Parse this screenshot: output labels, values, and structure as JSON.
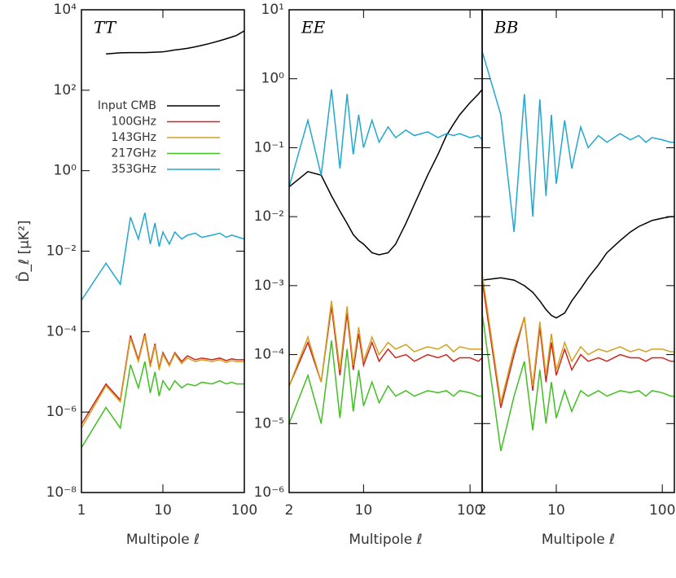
{
  "chart_data": [
    {
      "type": "line",
      "title": "TT",
      "y_label": "D̂_ℓ [μK²]",
      "x_label": "Multipole ℓ",
      "xscale": "log",
      "yscale": "log",
      "legend": "upper left",
      "xlim": [
        1,
        100
      ],
      "ylim": [
        1e-08,
        10000
      ],
      "xticks": [
        1,
        10,
        100
      ],
      "yticks": [
        {
          "value": 10000,
          "label": "10⁴"
        },
        {
          "value": 100,
          "label": "10²"
        },
        {
          "value": 1,
          "label": "10⁰"
        },
        {
          "value": 0.01,
          "label": "10⁻²"
        },
        {
          "value": 0.0001,
          "label": "10⁻⁴"
        },
        {
          "value": 1e-06,
          "label": "10⁻⁶"
        },
        {
          "value": 1e-08,
          "label": "10⁻⁸"
        }
      ],
      "x": [
        1,
        2,
        3,
        4,
        5,
        6,
        7,
        8,
        9,
        10,
        12,
        14,
        17,
        20,
        25,
        30,
        40,
        50,
        60,
        70,
        80,
        100
      ],
      "series": [
        {
          "name": "Input CMB",
          "color": "#000000",
          "values": [
            null,
            800,
            850,
            860,
            860,
            860,
            870,
            880,
            890,
            900,
            950,
            1000,
            1050,
            1100,
            1200,
            1300,
            1500,
            1700,
            1900,
            2100,
            2300,
            3000
          ]
        },
        {
          "name": "100GHz",
          "color": "#d0241c",
          "values": [
            5e-07,
            5e-06,
            2e-06,
            8e-05,
            2e-05,
            9e-05,
            1.5e-05,
            5e-05,
            1.2e-05,
            3e-05,
            1.5e-05,
            3e-05,
            1.8e-05,
            2.5e-05,
            2e-05,
            2.2e-05,
            2e-05,
            2.2e-05,
            1.9e-05,
            2.1e-05,
            2e-05,
            2e-05
          ]
        },
        {
          "name": "143GHz",
          "color": "#d4a020",
          "values": [
            4e-07,
            4.5e-06,
            1.8e-06,
            7e-05,
            1.8e-05,
            8e-05,
            1.3e-05,
            4.5e-05,
            1.1e-05,
            2.7e-05,
            1.4e-05,
            2.8e-05,
            1.6e-05,
            2.2e-05,
            1.8e-05,
            2e-05,
            1.8e-05,
            2e-05,
            1.7e-05,
            1.9e-05,
            1.8e-05,
            1.8e-05
          ]
        },
        {
          "name": "217GHz",
          "color": "#40c020",
          "values": [
            1.3e-07,
            1.3e-06,
            4e-07,
            1.5e-05,
            4e-06,
            1.8e-05,
            3e-06,
            1e-05,
            2.5e-06,
            6e-06,
            3.5e-06,
            6e-06,
            4e-06,
            5e-06,
            4.5e-06,
            5.5e-06,
            5e-06,
            6e-06,
            5e-06,
            5.5e-06,
            5e-06,
            5e-06
          ]
        },
        {
          "name": "353GHz",
          "color": "#20a8d0",
          "values": [
            0.0006,
            0.005,
            0.0015,
            0.07,
            0.02,
            0.09,
            0.015,
            0.05,
            0.013,
            0.03,
            0.015,
            0.03,
            0.02,
            0.025,
            0.028,
            0.022,
            0.025,
            0.028,
            0.022,
            0.025,
            0.023,
            0.02
          ]
        }
      ]
    },
    {
      "type": "line",
      "title": "EE",
      "x_label": "Multipole ℓ",
      "xscale": "log",
      "yscale": "log",
      "xlim": [
        2,
        130
      ],
      "ylim": [
        1e-06,
        10
      ],
      "xticks": [
        2,
        10,
        100
      ],
      "yticks": [
        {
          "value": 10,
          "label": "10¹"
        },
        {
          "value": 1,
          "label": "10⁰"
        },
        {
          "value": 0.1,
          "label": "10⁻¹"
        },
        {
          "value": 0.01,
          "label": "10⁻²"
        },
        {
          "value": 0.001,
          "label": "10⁻³"
        },
        {
          "value": 0.0001,
          "label": "10⁻⁴"
        },
        {
          "value": 1e-05,
          "label": "10⁻⁵"
        },
        {
          "value": 1e-06,
          "label": "10⁻⁶"
        }
      ],
      "x": [
        2,
        3,
        4,
        5,
        6,
        7,
        8,
        9,
        10,
        12,
        14,
        17,
        20,
        25,
        30,
        40,
        50,
        60,
        70,
        80,
        100,
        120,
        130
      ],
      "series": [
        {
          "color": "#000000",
          "values": [
            0.027,
            0.045,
            0.04,
            0.02,
            0.012,
            0.008,
            0.0055,
            0.0045,
            0.004,
            0.003,
            0.0028,
            0.003,
            0.004,
            0.008,
            0.015,
            0.04,
            0.08,
            0.15,
            0.22,
            0.3,
            0.45,
            0.6,
            0.7
          ]
        },
        {
          "color": "#d0241c",
          "values": [
            3.5e-05,
            0.00015,
            4e-05,
            0.0005,
            5e-05,
            0.0004,
            6e-05,
            0.0002,
            7e-05,
            0.00015,
            8e-05,
            0.00012,
            9e-05,
            0.0001,
            8e-05,
            0.0001,
            9e-05,
            0.0001,
            8e-05,
            9e-05,
            9e-05,
            8e-05,
            9e-05
          ]
        },
        {
          "color": "#d4a020",
          "values": [
            3.5e-05,
            0.00018,
            4e-05,
            0.0006,
            6e-05,
            0.0005,
            7e-05,
            0.00025,
            8e-05,
            0.00018,
            0.0001,
            0.00015,
            0.00012,
            0.00014,
            0.00011,
            0.00013,
            0.00012,
            0.00014,
            0.00011,
            0.00013,
            0.00012,
            0.00012,
            0.00012
          ]
        },
        {
          "color": "#40c020",
          "values": [
            1e-05,
            5e-05,
            1e-05,
            0.00016,
            1.2e-05,
            0.00012,
            1.5e-05,
            6e-05,
            1.8e-05,
            4e-05,
            2e-05,
            3.5e-05,
            2.5e-05,
            3e-05,
            2.5e-05,
            3e-05,
            2.8e-05,
            3e-05,
            2.5e-05,
            3e-05,
            2.8e-05,
            2.5e-05,
            2.5e-05
          ]
        },
        {
          "color": "#20a8d0",
          "values": [
            0.027,
            0.25,
            0.04,
            0.7,
            0.05,
            0.6,
            0.08,
            0.3,
            0.1,
            0.25,
            0.12,
            0.2,
            0.14,
            0.18,
            0.15,
            0.17,
            0.14,
            0.16,
            0.15,
            0.16,
            0.14,
            0.15,
            0.13
          ]
        }
      ]
    },
    {
      "type": "line",
      "title": "BB",
      "x_label": "Multipole ℓ",
      "xscale": "log",
      "yscale": "log",
      "ytick_labels": false,
      "xlim": [
        2,
        130
      ],
      "ylim": [
        1e-06,
        10
      ],
      "xticks": [
        2,
        10,
        100
      ],
      "yticks": [
        10,
        1,
        0.1,
        0.01,
        0.001,
        0.0001,
        1e-05,
        1e-06
      ],
      "x": [
        2,
        3,
        4,
        5,
        6,
        7,
        8,
        9,
        10,
        12,
        14,
        17,
        20,
        25,
        30,
        40,
        50,
        60,
        70,
        80,
        100,
        120,
        130
      ],
      "series": [
        {
          "color": "#000000",
          "values": [
            0.0012,
            0.0013,
            0.0012,
            0.001,
            0.0008,
            0.0006,
            0.00045,
            0.00037,
            0.00034,
            0.0004,
            0.0006,
            0.0009,
            0.0013,
            0.002,
            0.003,
            0.0045,
            0.006,
            0.0072,
            0.008,
            0.0088,
            0.0095,
            0.01,
            0.01
          ]
        },
        {
          "color": "#d0241c",
          "values": [
            0.0012,
            1.7e-05,
            0.0001,
            0.00035,
            3e-05,
            0.00025,
            4e-05,
            0.00015,
            5e-05,
            0.00012,
            6e-05,
            0.0001,
            8e-05,
            9e-05,
            8e-05,
            0.0001,
            9e-05,
            9e-05,
            8e-05,
            9e-05,
            9e-05,
            8e-05,
            8e-05
          ]
        },
        {
          "color": "#d4a020",
          "values": [
            0.0015,
            2e-05,
            0.00012,
            0.00035,
            3.5e-05,
            0.0003,
            5e-05,
            0.0002,
            6e-05,
            0.00015,
            8e-05,
            0.00013,
            0.0001,
            0.00012,
            0.00011,
            0.00013,
            0.00011,
            0.00012,
            0.00011,
            0.00012,
            0.00012,
            0.00011,
            0.00011
          ]
        },
        {
          "color": "#40c020",
          "values": [
            0.0004,
            4e-06,
            2.5e-05,
            8e-05,
            8e-06,
            6e-05,
            1e-05,
            4e-05,
            1.2e-05,
            3e-05,
            1.5e-05,
            3e-05,
            2.5e-05,
            3e-05,
            2.5e-05,
            3e-05,
            2.8e-05,
            3e-05,
            2.5e-05,
            3e-05,
            2.8e-05,
            2.5e-05,
            2.5e-05
          ]
        },
        {
          "color": "#20a8d0",
          "values": [
            2.5,
            0.3,
            0.006,
            0.6,
            0.01,
            0.5,
            0.02,
            0.3,
            0.03,
            0.25,
            0.05,
            0.2,
            0.1,
            0.15,
            0.12,
            0.16,
            0.13,
            0.15,
            0.12,
            0.14,
            0.13,
            0.12,
            0.12
          ]
        }
      ]
    }
  ]
}
